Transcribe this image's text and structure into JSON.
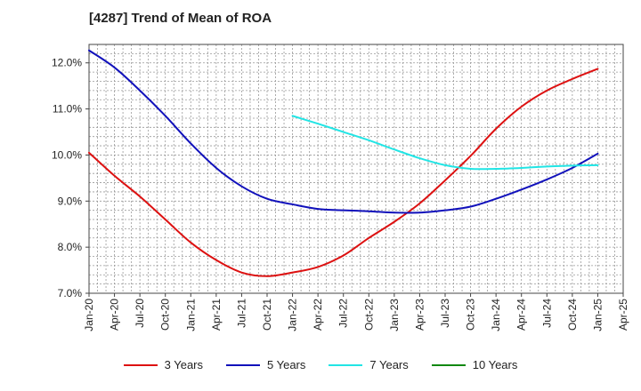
{
  "chart_data": {
    "type": "line",
    "title": "[4287]  Trend of Mean of ROA",
    "xlabel": "",
    "ylabel": "",
    "ylim": [
      7.0,
      12.4
    ],
    "yticks": [
      "7.0%",
      "8.0%",
      "9.0%",
      "10.0%",
      "11.0%",
      "12.0%"
    ],
    "y_tick_values": [
      7.0,
      8.0,
      9.0,
      10.0,
      11.0,
      12.0
    ],
    "xticks": [
      "Jan-20",
      "Apr-20",
      "Jul-20",
      "Oct-20",
      "Jan-21",
      "Apr-21",
      "Jul-21",
      "Oct-21",
      "Jan-22",
      "Apr-22",
      "Jul-22",
      "Oct-22",
      "Jan-23",
      "Apr-23",
      "Jul-23",
      "Oct-23",
      "Jan-24",
      "Apr-24",
      "Jul-24",
      "Oct-24",
      "Jan-25",
      "Apr-25"
    ],
    "grid": true,
    "legend_position": "bottom",
    "series": [
      {
        "name": "3 Years",
        "color": "#dd1111",
        "x": [
          "Jan-20",
          "Apr-20",
          "Jul-20",
          "Oct-20",
          "Jan-21",
          "Apr-21",
          "Jul-21",
          "Oct-21",
          "Jan-22",
          "Apr-22",
          "Jul-22",
          "Oct-22",
          "Jan-23",
          "Apr-23",
          "Jul-23",
          "Oct-23",
          "Jan-24",
          "Apr-24",
          "Jul-24",
          "Oct-24",
          "Jan-25"
        ],
        "values": [
          10.05,
          9.55,
          9.1,
          8.6,
          8.1,
          7.72,
          7.45,
          7.37,
          7.45,
          7.57,
          7.82,
          8.2,
          8.55,
          8.95,
          9.45,
          9.98,
          10.57,
          11.05,
          11.4,
          11.65,
          11.87
        ]
      },
      {
        "name": "5 Years",
        "color": "#1111bb",
        "x": [
          "Jan-20",
          "Apr-20",
          "Jul-20",
          "Oct-20",
          "Jan-21",
          "Apr-21",
          "Jul-21",
          "Oct-21",
          "Jan-22",
          "Apr-22",
          "Jul-22",
          "Oct-22",
          "Jan-23",
          "Apr-23",
          "Jul-23",
          "Oct-23",
          "Jan-24",
          "Apr-24",
          "Jul-24",
          "Oct-24",
          "Jan-25"
        ],
        "values": [
          12.27,
          11.9,
          11.4,
          10.85,
          10.25,
          9.72,
          9.32,
          9.05,
          8.93,
          8.83,
          8.8,
          8.78,
          8.75,
          8.75,
          8.8,
          8.88,
          9.05,
          9.25,
          9.47,
          9.72,
          10.03
        ]
      },
      {
        "name": "7 Years",
        "color": "#22e5e5",
        "x": [
          "Jan-22",
          "Apr-22",
          "Jul-22",
          "Oct-22",
          "Jan-23",
          "Apr-23",
          "Jul-23",
          "Oct-23",
          "Jan-24",
          "Apr-24",
          "Jul-24",
          "Oct-24",
          "Jan-25"
        ],
        "values": [
          10.85,
          10.68,
          10.5,
          10.32,
          10.12,
          9.93,
          9.78,
          9.7,
          9.7,
          9.72,
          9.75,
          9.77,
          9.78
        ]
      },
      {
        "name": "10 Years",
        "color": "#118811",
        "x": [],
        "values": []
      }
    ]
  }
}
